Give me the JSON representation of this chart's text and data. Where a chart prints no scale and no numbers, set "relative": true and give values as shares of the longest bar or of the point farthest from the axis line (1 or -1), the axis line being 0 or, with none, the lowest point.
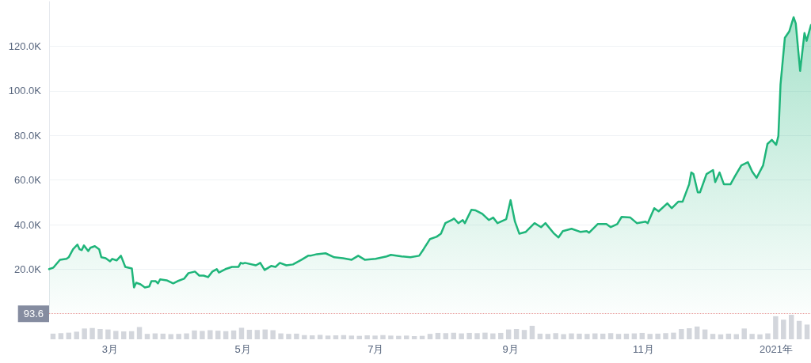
{
  "chart_data": [
    {
      "type": "area",
      "color": "#1fb57a",
      "marker": "none",
      "grid": "y",
      "x": [
        "2020-02-02",
        "2020-02-04",
        "2020-02-07",
        "2020-02-10",
        "2020-02-11",
        "2020-02-13",
        "2020-02-15",
        "2020-02-16",
        "2020-02-17",
        "2020-02-18",
        "2020-02-20",
        "2020-02-21",
        "2020-02-23",
        "2020-02-25",
        "2020-02-26",
        "2020-02-28",
        "2020-03-01",
        "2020-03-02",
        "2020-03-04",
        "2020-03-06",
        "2020-03-08",
        "2020-03-11",
        "2020-03-12",
        "2020-03-13",
        "2020-03-15",
        "2020-03-17",
        "2020-03-19",
        "2020-03-20",
        "2020-03-22",
        "2020-03-23",
        "2020-03-24",
        "2020-03-27",
        "2020-03-30",
        "2020-04-01",
        "2020-04-04",
        "2020-04-06",
        "2020-04-09",
        "2020-04-11",
        "2020-04-13",
        "2020-04-15",
        "2020-04-17",
        "2020-04-19",
        "2020-04-20",
        "2020-04-23",
        "2020-04-26",
        "2020-04-29",
        "2020-04-30",
        "2020-05-01",
        "2020-05-02",
        "2020-05-07",
        "2020-05-09",
        "2020-05-11",
        "2020-05-14",
        "2020-05-16",
        "2020-05-18",
        "2020-05-21",
        "2020-05-24",
        "2020-05-28",
        "2020-05-31",
        "2020-06-01",
        "2020-06-04",
        "2020-06-08",
        "2020-06-12",
        "2020-06-16",
        "2020-06-20",
        "2020-06-23",
        "2020-06-26",
        "2020-07-01",
        "2020-07-06",
        "2020-07-08",
        "2020-07-13",
        "2020-07-17",
        "2020-07-21",
        "2020-07-23",
        "2020-07-26",
        "2020-07-29",
        "2020-07-31",
        "2020-08-02",
        "2020-08-05",
        "2020-08-06",
        "2020-08-08",
        "2020-08-10",
        "2020-08-11",
        "2020-08-14",
        "2020-08-16",
        "2020-08-19",
        "2020-08-22",
        "2020-08-24",
        "2020-08-26",
        "2020-08-30",
        "2020-09-01",
        "2020-09-03",
        "2020-09-05",
        "2020-09-08",
        "2020-09-12",
        "2020-09-15",
        "2020-09-17",
        "2020-09-21",
        "2020-09-23",
        "2020-09-25",
        "2020-09-29",
        "2020-10-03",
        "2020-10-06",
        "2020-10-07",
        "2020-10-11",
        "2020-10-15",
        "2020-10-17",
        "2020-10-20",
        "2020-10-22",
        "2020-10-26",
        "2020-10-29",
        "2020-11-02",
        "2020-11-03",
        "2020-11-06",
        "2020-11-08",
        "2020-11-12",
        "2020-11-14",
        "2020-11-17",
        "2020-11-19",
        "2020-11-22",
        "2020-11-23",
        "2020-11-24",
        "2020-11-26",
        "2020-11-27",
        "2020-11-30",
        "2020-12-03",
        "2020-12-04",
        "2020-12-06",
        "2020-12-08",
        "2020-12-11",
        "2020-12-13",
        "2020-12-16",
        "2020-12-19",
        "2020-12-21",
        "2020-12-23",
        "2020-12-26",
        "2020-12-28",
        "2020-12-30",
        "2021-01-01",
        "2021-01-02",
        "2021-01-03",
        "2021-01-05",
        "2021-01-07",
        "2021-01-09",
        "2021-01-10",
        "2021-01-12",
        "2021-01-14",
        "2021-01-15",
        "2021-01-17"
      ],
      "values": [
        20100,
        20800,
        24300,
        24700,
        25400,
        29000,
        31100,
        29000,
        28600,
        30700,
        28200,
        29700,
        30400,
        29000,
        25400,
        25000,
        23600,
        24700,
        24000,
        26100,
        21100,
        20400,
        11900,
        14000,
        13300,
        11900,
        12300,
        14700,
        14700,
        13700,
        15500,
        15100,
        13700,
        14700,
        15800,
        18300,
        19000,
        17200,
        17200,
        16500,
        19000,
        20100,
        18600,
        20100,
        21100,
        21100,
        22900,
        22600,
        22900,
        21800,
        22900,
        19700,
        21500,
        21100,
        22900,
        21800,
        22200,
        24300,
        26100,
        26100,
        26800,
        27200,
        25400,
        25000,
        24300,
        26100,
        24300,
        24700,
        25800,
        26500,
        25800,
        25400,
        26100,
        29000,
        33600,
        34600,
        36000,
        40700,
        42100,
        42800,
        40700,
        42100,
        40700,
        46700,
        46400,
        44900,
        42100,
        43200,
        40700,
        42500,
        51000,
        41400,
        36000,
        36800,
        40700,
        38900,
        40700,
        36000,
        34300,
        37100,
        38200,
        36800,
        37100,
        36400,
        40300,
        40300,
        38900,
        40300,
        43500,
        43200,
        40700,
        41400,
        40700,
        47400,
        46000,
        49600,
        47400,
        50300,
        50300,
        58100,
        63400,
        62700,
        54500,
        54500,
        62700,
        64500,
        59100,
        63400,
        58100,
        58100,
        61600,
        66600,
        68000,
        63800,
        61000,
        66600,
        76200,
        78000,
        75800,
        79700,
        102800,
        123800,
        126600,
        133000,
        130200,
        108900,
        125900,
        122400,
        129500
      ],
      "xlim": [
        "2020-02-02",
        "2021-01-17"
      ],
      "xticks": [
        {
          "value": "2020-03-01",
          "label": "3月"
        },
        {
          "value": "2020-05-01",
          "label": "5月"
        },
        {
          "value": "2020-07-01",
          "label": "7月"
        },
        {
          "value": "2020-09-01",
          "label": "9月"
        },
        {
          "value": "2020-11-01",
          "label": "11月"
        },
        {
          "value": "2021-01-01",
          "label": "2021年"
        }
      ],
      "ylim": [
        0,
        140000
      ],
      "yticks": [
        {
          "value": 20000,
          "label": "20.0K"
        },
        {
          "value": 40000,
          "label": "40.0K"
        },
        {
          "value": 60000,
          "label": "60.0K"
        },
        {
          "value": 80000,
          "label": "80.0K"
        },
        {
          "value": 100000,
          "label": "100.0K"
        },
        {
          "value": 120000,
          "label": "120.0K"
        }
      ],
      "ref_lines": [
        {
          "axis": "y",
          "value": 93.6,
          "label": "93.6",
          "color": "#e89a9a",
          "line_style": "dotted"
        }
      ]
    },
    {
      "type": "bar",
      "relative": true,
      "color": "#d3d6dc",
      "categories": [
        null,
        null,
        null,
        null,
        null,
        null,
        null,
        null,
        null,
        null,
        null,
        null,
        null,
        null,
        null,
        null,
        null,
        null,
        null,
        null,
        null,
        null,
        null,
        null,
        null,
        null,
        null,
        null,
        null,
        null,
        null,
        null,
        null,
        null,
        null,
        null,
        null,
        null,
        null,
        null,
        null,
        null,
        null,
        null,
        null,
        null,
        null,
        null,
        null,
        null,
        null,
        null,
        null,
        null,
        null,
        null,
        null,
        null,
        null,
        null,
        null,
        null,
        null,
        null,
        null,
        null,
        null,
        null,
        null,
        null,
        null,
        null,
        null,
        null,
        null,
        null,
        null,
        null,
        null,
        null,
        null,
        null,
        null,
        null,
        null,
        null,
        null,
        null,
        null,
        null,
        null,
        null,
        null,
        null,
        null,
        null,
        null
      ],
      "values": [
        0.23,
        0.25,
        0.27,
        0.31,
        0.44,
        0.46,
        0.42,
        0.4,
        0.34,
        0.32,
        0.33,
        0.5,
        0.22,
        0.24,
        0.23,
        0.21,
        0.22,
        0.24,
        0.36,
        0.34,
        0.37,
        0.35,
        0.33,
        0.36,
        0.47,
        0.39,
        0.38,
        0.4,
        0.37,
        0.24,
        0.22,
        0.23,
        0.17,
        0.16,
        0.18,
        0.15,
        0.16,
        0.17,
        0.15,
        0.14,
        0.16,
        0.15,
        0.17,
        0.15,
        0.14,
        0.15,
        0.13,
        0.14,
        0.22,
        0.26,
        0.25,
        0.27,
        0.24,
        0.26,
        0.25,
        0.27,
        0.24,
        0.26,
        0.4,
        0.42,
        0.38,
        0.55,
        0.23,
        0.22,
        0.25,
        0.21,
        0.24,
        0.23,
        0.22,
        0.24,
        0.23,
        0.25,
        0.22,
        0.23,
        0.24,
        0.26,
        0.22,
        0.23,
        0.25,
        0.27,
        0.42,
        0.45,
        0.52,
        0.4,
        0.22,
        0.2,
        0.23,
        0.21,
        0.44,
        0.22,
        0.2,
        0.24,
        0.94,
        0.8,
        1,
        0.75,
        0.6
      ]
    }
  ]
}
